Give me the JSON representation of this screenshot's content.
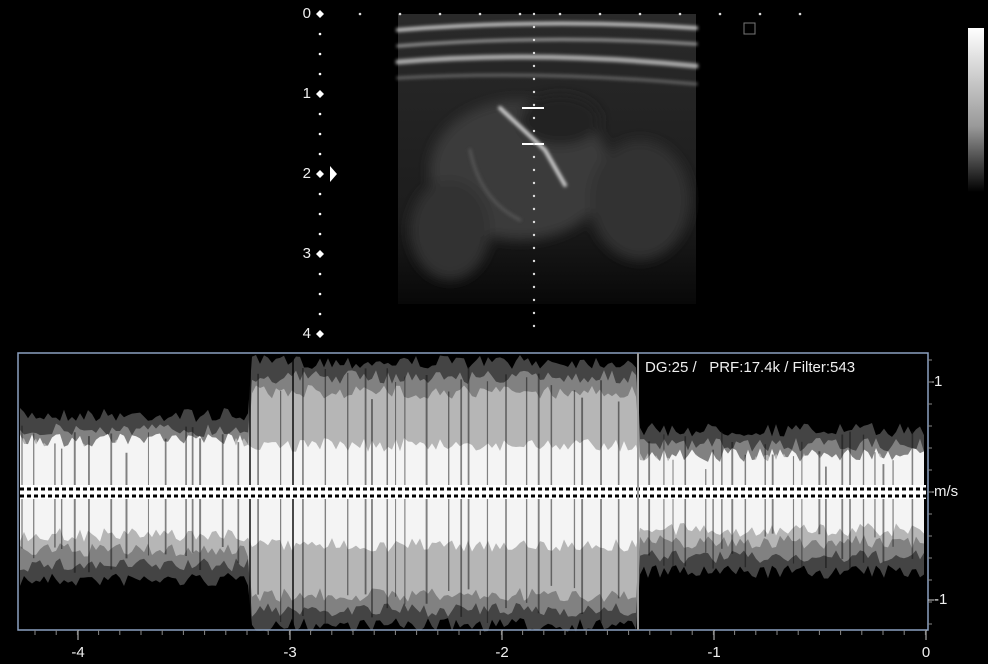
{
  "depth_scale": {
    "labels": [
      "0",
      "1",
      "2",
      "3",
      "4"
    ]
  },
  "doppler": {
    "info": "DG:25 /   PRF:17.4k / Filter:543",
    "time_axis": {
      "labels": [
        "-4",
        "-3",
        "-2",
        "-1",
        "0"
      ]
    },
    "velocity_axis": {
      "labels": [
        "1",
        "m/s",
        "-1"
      ]
    }
  }
}
